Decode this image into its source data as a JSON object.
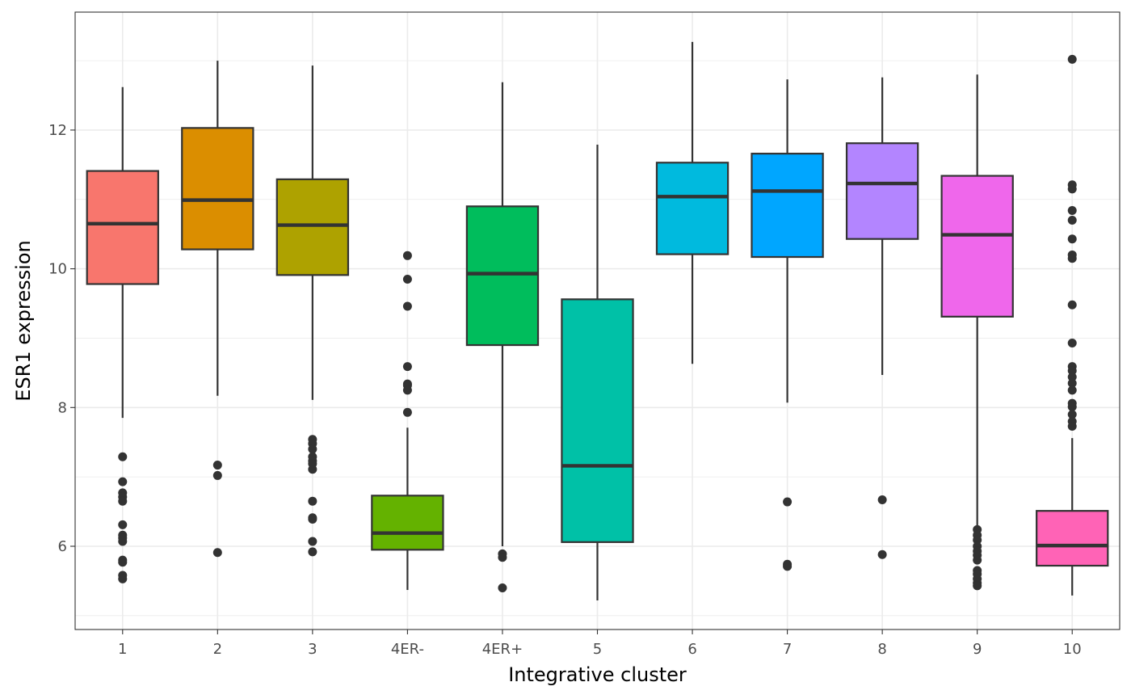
{
  "chart_data": {
    "type": "boxplot",
    "xlabel": "Integrative cluster",
    "ylabel": "ESR1 expression",
    "ylim": [
      4.8,
      13.7
    ],
    "yticks": [
      6,
      8,
      10,
      12
    ],
    "grid": true,
    "legend": "none",
    "categories": [
      "1",
      "2",
      "3",
      "4ER-",
      "4ER+",
      "5",
      "6",
      "7",
      "8",
      "9",
      "10"
    ],
    "boxes": [
      {
        "category": "1",
        "color": "#F8766D",
        "lower_whisker": 7.85,
        "q1": 9.78,
        "median": 10.65,
        "q3": 11.41,
        "upper_whisker": 12.62,
        "outliers": [
          7.29,
          6.93,
          6.77,
          6.71,
          6.65,
          6.31,
          6.16,
          6.12,
          6.07,
          5.8,
          5.77,
          5.58,
          5.53
        ]
      },
      {
        "category": "2",
        "color": "#DB8E00",
        "lower_whisker": 8.17,
        "q1": 10.28,
        "median": 10.99,
        "q3": 12.03,
        "upper_whisker": 13.0,
        "outliers": [
          7.17,
          7.02,
          5.91
        ]
      },
      {
        "category": "3",
        "color": "#AEA200",
        "lower_whisker": 8.11,
        "q1": 9.91,
        "median": 10.63,
        "q3": 11.29,
        "upper_whisker": 12.93,
        "outliers": [
          7.54,
          7.48,
          7.4,
          7.29,
          7.23,
          7.19,
          7.11,
          6.65,
          6.41,
          6.39,
          6.07,
          5.92
        ]
      },
      {
        "category": "4ER-",
        "color": "#64B200",
        "lower_whisker": 5.37,
        "q1": 5.95,
        "median": 6.19,
        "q3": 6.73,
        "upper_whisker": 7.71,
        "outliers": [
          10.19,
          9.85,
          9.46,
          8.59,
          8.34,
          8.32,
          8.25,
          7.93
        ]
      },
      {
        "category": "4ER+",
        "color": "#00BD5C",
        "lower_whisker": 6.0,
        "q1": 8.9,
        "median": 9.93,
        "q3": 10.9,
        "upper_whisker": 12.69,
        "outliers": [
          5.89,
          5.84,
          5.4
        ]
      },
      {
        "category": "5",
        "color": "#00C1A7",
        "lower_whisker": 5.22,
        "q1": 6.06,
        "median": 7.16,
        "q3": 9.56,
        "upper_whisker": 11.79,
        "outliers": []
      },
      {
        "category": "6",
        "color": "#00BADE",
        "lower_whisker": 8.63,
        "q1": 10.21,
        "median": 11.04,
        "q3": 11.53,
        "upper_whisker": 13.27,
        "outliers": []
      },
      {
        "category": "7",
        "color": "#00A6FF",
        "lower_whisker": 8.07,
        "q1": 10.17,
        "median": 11.12,
        "q3": 11.66,
        "upper_whisker": 12.73,
        "outliers": [
          6.64,
          5.74,
          5.71
        ]
      },
      {
        "category": "8",
        "color": "#B385FF",
        "lower_whisker": 8.47,
        "q1": 10.43,
        "median": 11.23,
        "q3": 11.81,
        "upper_whisker": 12.76,
        "outliers": [
          6.67,
          5.88
        ]
      },
      {
        "category": "9",
        "color": "#EF67EB",
        "lower_whisker": 6.3,
        "q1": 9.31,
        "median": 10.49,
        "q3": 11.34,
        "upper_whisker": 12.8,
        "outliers": [
          6.24,
          6.16,
          6.09,
          6.0,
          5.93,
          5.87,
          5.8,
          5.65,
          5.6,
          5.53,
          5.47,
          5.43
        ]
      },
      {
        "category": "10",
        "color": "#FF63B6",
        "lower_whisker": 5.29,
        "q1": 5.72,
        "median": 6.01,
        "q3": 6.51,
        "upper_whisker": 7.56,
        "outliers": [
          13.02,
          11.21,
          11.15,
          10.84,
          10.7,
          10.43,
          10.2,
          10.15,
          9.48,
          8.93,
          8.59,
          8.53,
          8.44,
          8.35,
          8.25,
          8.06,
          8.01,
          7.9,
          7.8,
          7.73
        ]
      }
    ]
  }
}
